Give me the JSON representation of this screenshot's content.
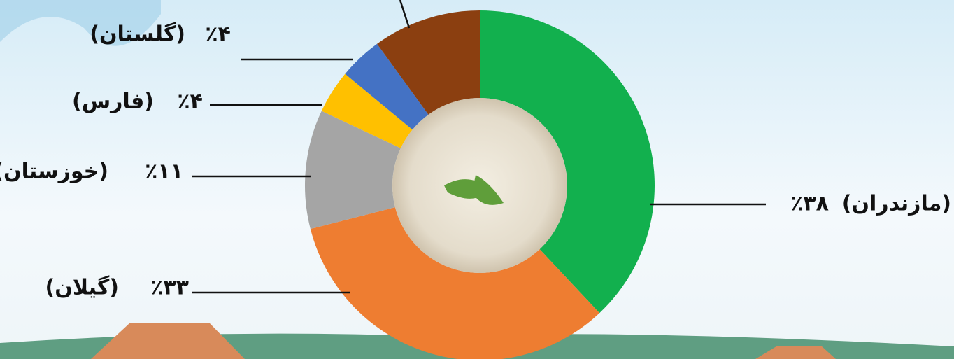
{
  "chart_data": {
    "type": "donut",
    "categories": [
      "(مازندران)",
      "(گیلان)",
      "(خوزستان)",
      "(فارس)",
      "(گلستان)",
      null
    ],
    "values": [
      38,
      33,
      11,
      4,
      4,
      10
    ],
    "value_labels": [
      "٪۳۸",
      "٪۳۳",
      "٪۱۱",
      "٪۴",
      "٪۴",
      null
    ],
    "colors": [
      "#12b04e",
      "#ee7d31",
      "#a5a5a5",
      "#ffc000",
      "#4472c4",
      "#8b3f10"
    ]
  }
}
